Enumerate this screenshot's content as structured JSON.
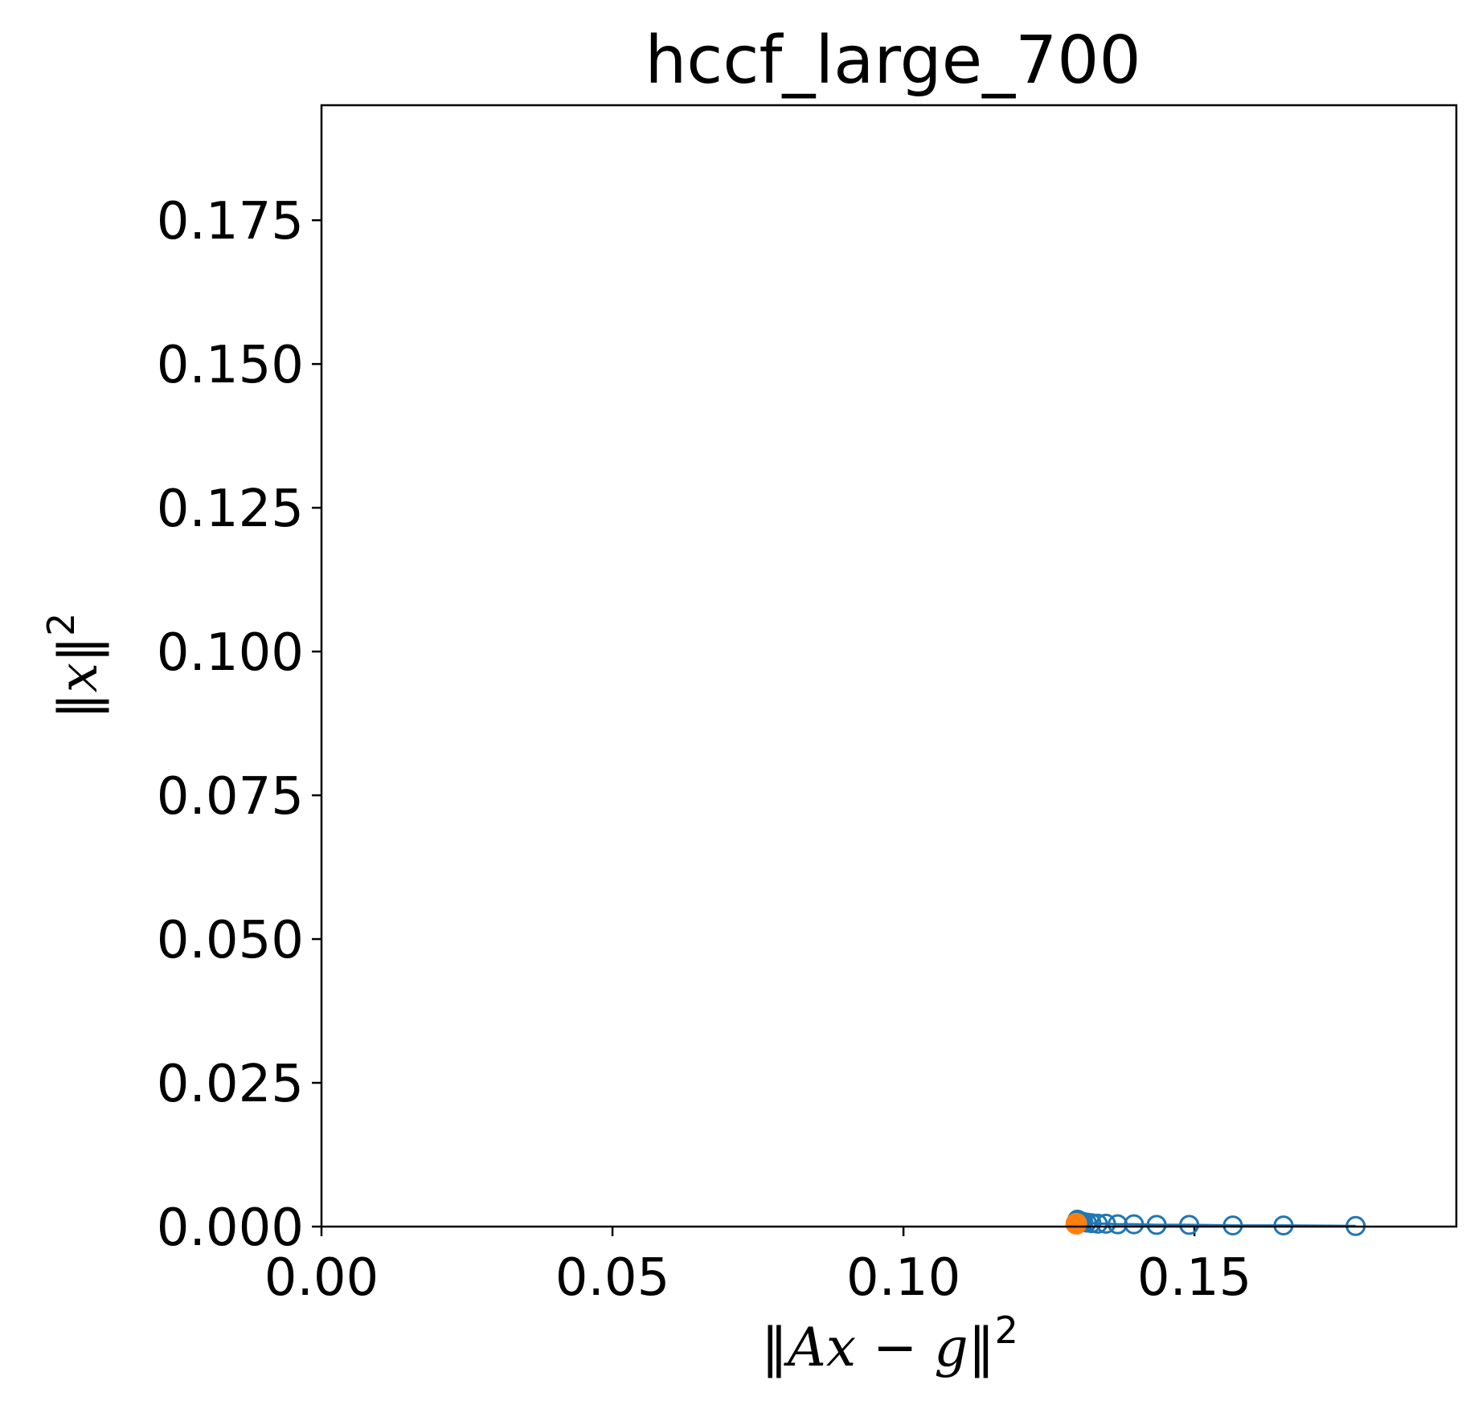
{
  "chart_data": {
    "type": "scatter",
    "title": "hccf_large_700",
    "xlabel": "‖Ax − g‖²",
    "ylabel": "‖x‖²",
    "xlabel_parts": {
      "open": "‖",
      "var1": "Ax",
      "minus": " − ",
      "var2": "g",
      "close": "‖",
      "exp": "2"
    },
    "ylabel_parts": {
      "open": "‖",
      "var": "x",
      "close": "‖",
      "exp": "2"
    },
    "xlim": [
      0.0,
      0.195
    ],
    "ylim": [
      0.0,
      0.195
    ],
    "xticks": [
      0.0,
      0.05,
      0.1,
      0.15
    ],
    "xtick_labels": [
      "0.00",
      "0.05",
      "0.10",
      "0.15"
    ],
    "yticks": [
      0.0,
      0.025,
      0.05,
      0.075,
      0.1,
      0.125,
      0.15,
      0.175
    ],
    "ytick_labels": [
      "0.000",
      "0.025",
      "0.050",
      "0.075",
      "0.100",
      "0.125",
      "0.150",
      "0.175"
    ],
    "grid": false,
    "series": [
      {
        "color": "#1f77b4",
        "marker": "open-circle",
        "connected": true,
        "x": [
          0.1777,
          0.1653,
          0.1566,
          0.1491,
          0.1435,
          0.1396,
          0.1368,
          0.1348,
          0.1334,
          0.1323,
          0.1315,
          0.1309,
          0.1305,
          0.1302,
          0.13,
          0.1299
        ],
        "y": [
          0.0001,
          0.0002,
          0.0002,
          0.0003,
          0.0003,
          0.0004,
          0.0004,
          0.0005,
          0.0005,
          0.0006,
          0.0007,
          0.0008,
          0.0009,
          0.001,
          0.0011,
          0.0012
        ]
      },
      {
        "color": "#ff7f0e",
        "marker": "filled-circle",
        "connected": false,
        "x": [
          0.1297
        ],
        "y": [
          0.0005
        ]
      }
    ]
  }
}
